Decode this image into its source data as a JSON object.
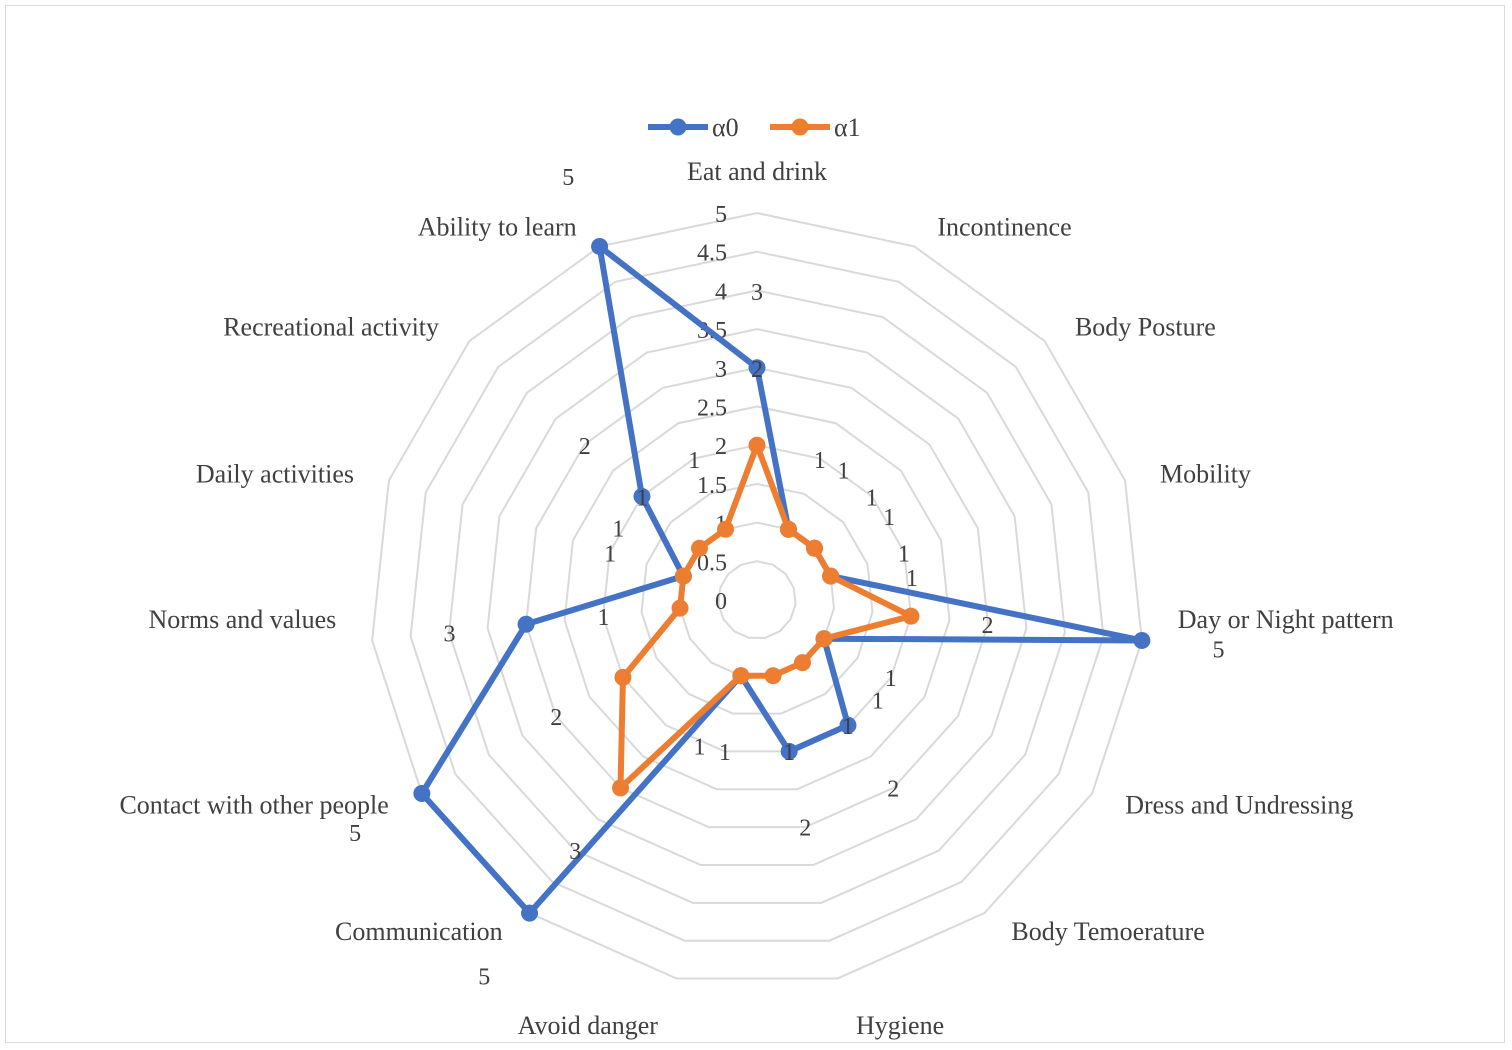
{
  "chart_data": {
    "type": "radar",
    "categories": [
      "Eat and drink",
      "Incontinence",
      "Body Posture",
      "Mobility",
      "Day or Night pattern",
      "Dress and Undressing",
      "Body Temoerature",
      "Hygiene",
      "Avoid danger",
      "Communication",
      "Contact with other people",
      "Norms and values",
      "Daily activities",
      "Recreational activity",
      "Ability to learn"
    ],
    "series": [
      {
        "name": "α0",
        "color": "#4472C4",
        "values": [
          3,
          1,
          1,
          1,
          5,
          1,
          2,
          2,
          1,
          5,
          5,
          3,
          1,
          2,
          5
        ]
      },
      {
        "name": "α1",
        "color": "#ED7D31",
        "values": [
          2,
          1,
          1,
          1,
          2,
          1,
          1,
          1,
          1,
          3,
          2,
          1,
          1,
          1,
          1
        ]
      }
    ],
    "rlim": [
      0,
      5
    ],
    "ticks": [
      "0",
      "0.5",
      "1",
      "1.5",
      "2",
      "2.5",
      "3",
      "3.5",
      "4",
      "4.5",
      "5"
    ],
    "grid": true,
    "data_labels": true,
    "legend": "top"
  }
}
